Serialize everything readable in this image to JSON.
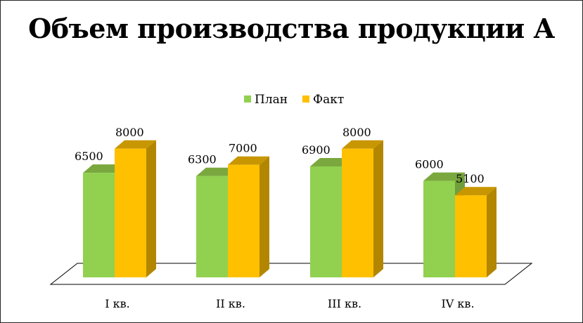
{
  "chart_data": {
    "type": "bar",
    "title": "Объем производства продукции А",
    "categories": [
      "I кв.",
      "II кв.",
      "III кв.",
      "IV кв."
    ],
    "series": [
      {
        "name": "План",
        "values": [
          6500,
          6300,
          6900,
          6000
        ],
        "color": "#92d050",
        "side_color": "#6f9e3a",
        "top_color": "#7aa83e"
      },
      {
        "name": "Факт",
        "values": [
          8000,
          7000,
          8000,
          5100
        ],
        "color": "#ffc000",
        "side_color": "#b38600",
        "top_color": "#c89600"
      }
    ],
    "data_labels": true,
    "legend_position": "top",
    "grid": false,
    "ylim": [
      0,
      9000
    ],
    "projection": "3d"
  }
}
